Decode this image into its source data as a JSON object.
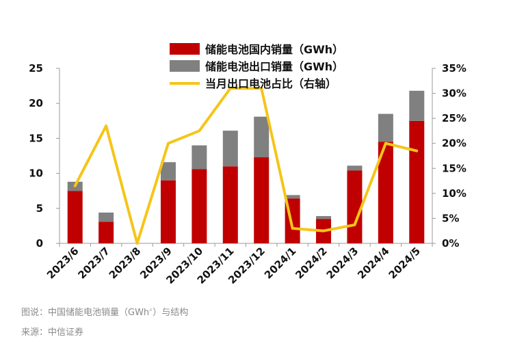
{
  "chart_data": {
    "type": "bar",
    "categories": [
      "2023/6",
      "2023/7",
      "2023/8",
      "2023/9",
      "2023/10",
      "2023/11",
      "2023/12",
      "2024/1",
      "2024/2",
      "2024/3",
      "2024/4",
      "2024/5"
    ],
    "series": [
      {
        "name": "储能电池国内销量（GWh）",
        "type": "bar",
        "stack": "total",
        "axis": "left",
        "color": "#c00000",
        "values": [
          7.5,
          3.1,
          0.0,
          9.0,
          10.6,
          11.0,
          12.3,
          6.4,
          3.5,
          10.4,
          14.5,
          17.5
        ]
      },
      {
        "name": "储能电池出口销量（GWh）",
        "type": "bar",
        "stack": "total",
        "axis": "left",
        "color": "#808080",
        "values": [
          1.3,
          1.3,
          0.0,
          2.6,
          3.4,
          5.1,
          5.8,
          0.5,
          0.4,
          0.7,
          4.0,
          4.3
        ]
      },
      {
        "name": "当月出口电池占比（右轴）",
        "type": "line",
        "axis": "right",
        "color": "#f5c518",
        "values": [
          0.115,
          0.235,
          0.0,
          0.2,
          0.225,
          0.31,
          0.31,
          0.03,
          0.025,
          0.037,
          0.2,
          0.185
        ]
      }
    ],
    "ylim": [
      0,
      25
    ],
    "yticks": [
      "0",
      "5",
      "10",
      "15",
      "20",
      "25"
    ],
    "y2lim": [
      0,
      0.35
    ],
    "y2ticks": [
      "0%",
      "5%",
      "10%",
      "15%",
      "20%",
      "25%",
      "30%",
      "35%"
    ],
    "legend_position": "top-center",
    "grid": false
  },
  "caption": {
    "figure": "图说：中国储能电池销量（GWh）与结构",
    "figure_main": "图说：中国储能电池销量（GWh",
    "figure_tail": "）与结构",
    "source": "来源：中信证券"
  }
}
